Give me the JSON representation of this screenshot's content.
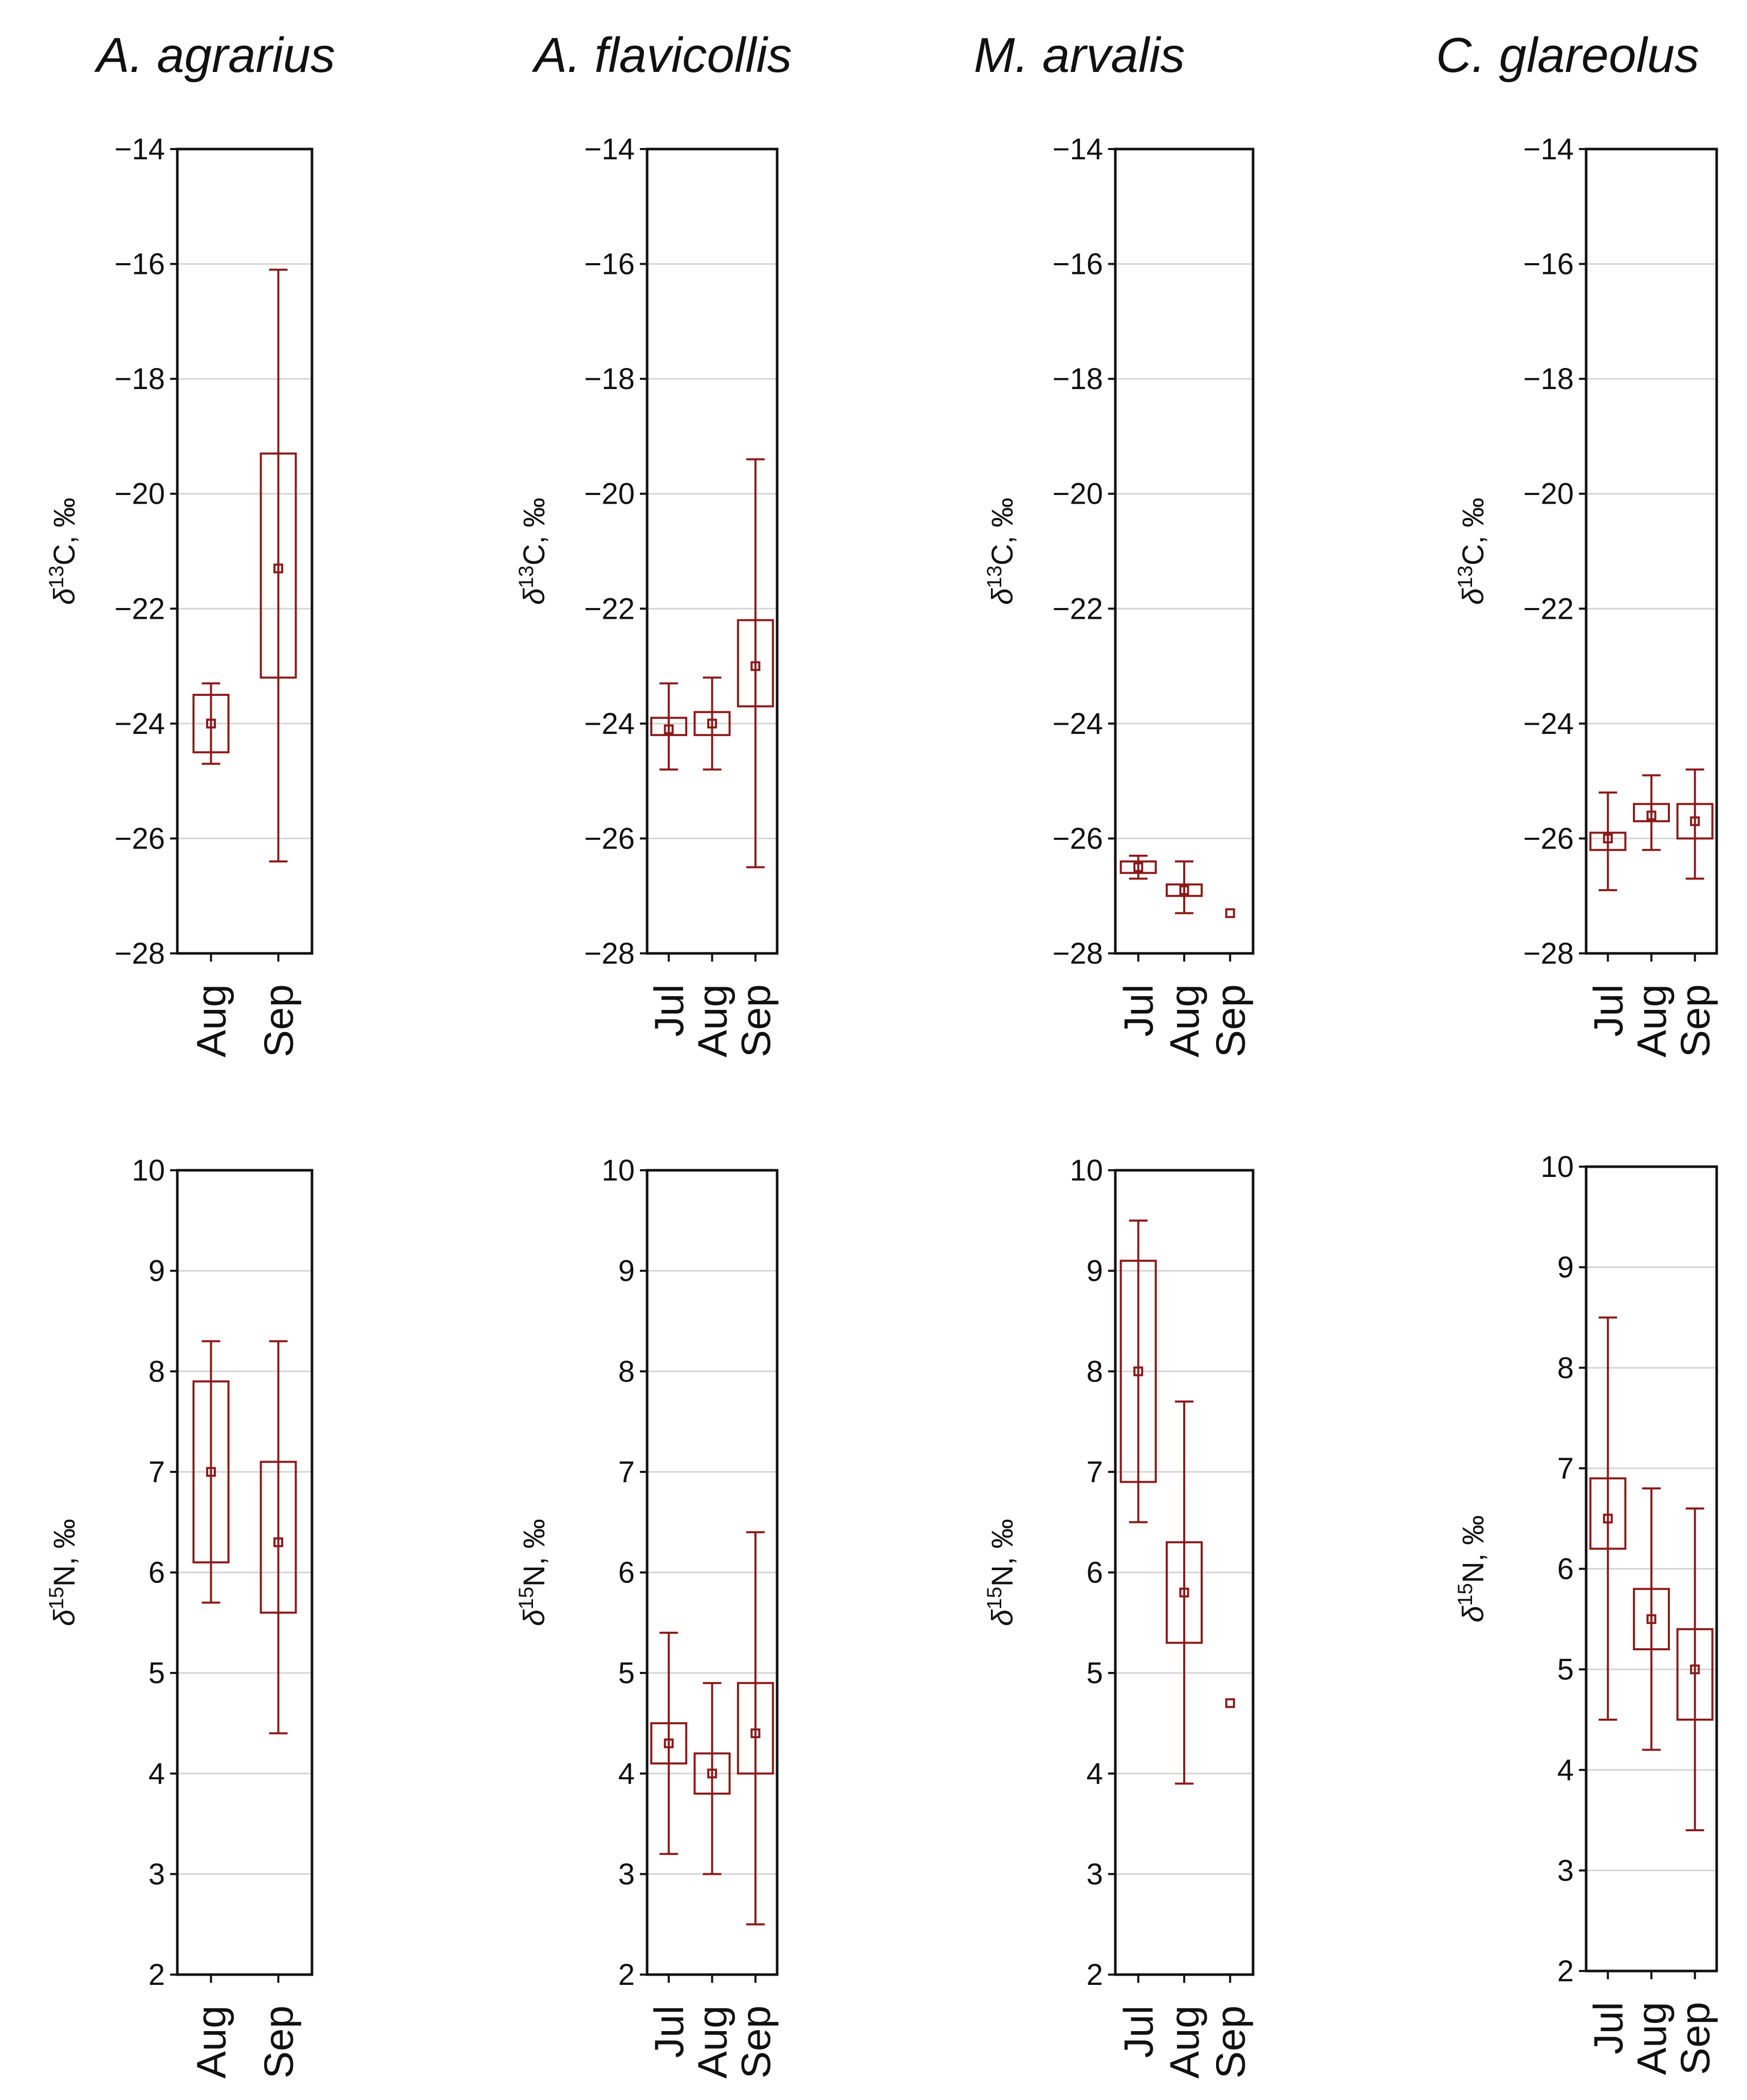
{
  "colors": {
    "accent": "#8B1A1A",
    "axis": "#111111",
    "grid": "#d4d4d4"
  },
  "chart_data": [
    {
      "type": "box",
      "species": "A. agrarius",
      "ylabel": "δ13C, ‰",
      "ylim": [
        -28,
        -14
      ],
      "yticks": [
        -14,
        -16,
        -18,
        -20,
        -22,
        -24,
        -26,
        -28
      ],
      "categories": [
        "Aug",
        "Sep"
      ],
      "boxes": [
        {
          "category": "Aug",
          "whisker_low": -24.7,
          "q1": -24.5,
          "median": -24.0,
          "q3": -23.5,
          "whisker_high": -23.3
        },
        {
          "category": "Sep",
          "whisker_low": -26.4,
          "q1": -23.2,
          "median": -21.3,
          "q3": -19.3,
          "whisker_high": -16.1
        }
      ]
    },
    {
      "type": "box",
      "species": "A. flavicollis",
      "ylabel": "δ13C, ‰",
      "ylim": [
        -28,
        -14
      ],
      "yticks": [
        -14,
        -16,
        -18,
        -20,
        -22,
        -24,
        -26,
        -28
      ],
      "categories": [
        "Jul",
        "Aug",
        "Sep"
      ],
      "boxes": [
        {
          "category": "Jul",
          "whisker_low": -24.8,
          "q1": -24.2,
          "median": -24.1,
          "q3": -23.9,
          "whisker_high": -23.3
        },
        {
          "category": "Aug",
          "whisker_low": -24.8,
          "q1": -24.2,
          "median": -24.0,
          "q3": -23.8,
          "whisker_high": -23.2
        },
        {
          "category": "Sep",
          "whisker_low": -26.5,
          "q1": -23.7,
          "median": -23.0,
          "q3": -22.2,
          "whisker_high": -19.4
        }
      ]
    },
    {
      "type": "box",
      "species": "M. arvalis",
      "ylabel": "δ13C, ‰",
      "ylim": [
        -28,
        -14
      ],
      "yticks": [
        -14,
        -16,
        -18,
        -20,
        -22,
        -24,
        -26,
        -28
      ],
      "categories": [
        "Jul",
        "Aug",
        "Sep"
      ],
      "boxes": [
        {
          "category": "Jul",
          "whisker_low": -26.7,
          "q1": -26.6,
          "median": -26.5,
          "q3": -26.4,
          "whisker_high": -26.3
        },
        {
          "category": "Aug",
          "whisker_low": -27.3,
          "q1": -27.0,
          "median": -26.9,
          "q3": -26.8,
          "whisker_high": -26.4
        },
        {
          "category": "Sep",
          "whisker_low": -27.3,
          "q1": -27.3,
          "median": -27.3,
          "q3": -27.3,
          "whisker_high": -27.3
        }
      ]
    },
    {
      "type": "box",
      "species": "C. glareolus",
      "ylabel": "δ13C, ‰",
      "ylim": [
        -28,
        -14
      ],
      "yticks": [
        -14,
        -16,
        -18,
        -20,
        -22,
        -24,
        -26,
        -28
      ],
      "categories": [
        "Jul",
        "Aug",
        "Sep"
      ],
      "boxes": [
        {
          "category": "Jul",
          "whisker_low": -26.9,
          "q1": -26.2,
          "median": -26.0,
          "q3": -25.9,
          "whisker_high": -25.2
        },
        {
          "category": "Aug",
          "whisker_low": -26.2,
          "q1": -25.7,
          "median": -25.6,
          "q3": -25.4,
          "whisker_high": -24.9
        },
        {
          "category": "Sep",
          "whisker_low": -26.7,
          "q1": -26.0,
          "median": -25.7,
          "q3": -25.4,
          "whisker_high": -24.8
        }
      ]
    },
    {
      "type": "box",
      "species": "A. agrarius",
      "ylabel": "δ15N, ‰",
      "ylim": [
        2,
        10
      ],
      "yticks": [
        10,
        9,
        8,
        7,
        6,
        5,
        4,
        3,
        2
      ],
      "categories": [
        "Aug",
        "Sep"
      ],
      "boxes": [
        {
          "category": "Aug",
          "whisker_low": 5.7,
          "q1": 6.1,
          "median": 7.0,
          "q3": 7.9,
          "whisker_high": 8.3
        },
        {
          "category": "Sep",
          "whisker_low": 4.4,
          "q1": 5.6,
          "median": 6.3,
          "q3": 7.1,
          "whisker_high": 8.3
        }
      ]
    },
    {
      "type": "box",
      "species": "A. flavicollis",
      "ylabel": "δ15N, ‰",
      "ylim": [
        2,
        10
      ],
      "yticks": [
        10,
        9,
        8,
        7,
        6,
        5,
        4,
        3,
        2
      ],
      "categories": [
        "Jul",
        "Aug",
        "Sep"
      ],
      "boxes": [
        {
          "category": "Jul",
          "whisker_low": 3.2,
          "q1": 4.1,
          "median": 4.3,
          "q3": 4.5,
          "whisker_high": 5.4
        },
        {
          "category": "Aug",
          "whisker_low": 3.0,
          "q1": 3.8,
          "median": 4.0,
          "q3": 4.2,
          "whisker_high": 4.9
        },
        {
          "category": "Sep",
          "whisker_low": 2.5,
          "q1": 4.0,
          "median": 4.4,
          "q3": 4.9,
          "whisker_high": 6.4
        }
      ]
    },
    {
      "type": "box",
      "species": "M. arvalis",
      "ylabel": "δ15N, ‰",
      "ylim": [
        2,
        10
      ],
      "yticks": [
        10,
        9,
        8,
        7,
        6,
        5,
        4,
        3,
        2
      ],
      "categories": [
        "Jul",
        "Aug",
        "Sep"
      ],
      "boxes": [
        {
          "category": "Jul",
          "whisker_low": 6.5,
          "q1": 6.9,
          "median": 8.0,
          "q3": 9.1,
          "whisker_high": 9.5
        },
        {
          "category": "Aug",
          "whisker_low": 3.9,
          "q1": 5.3,
          "median": 5.8,
          "q3": 6.3,
          "whisker_high": 7.7
        },
        {
          "category": "Sep",
          "whisker_low": 4.7,
          "q1": 4.7,
          "median": 4.7,
          "q3": 4.7,
          "whisker_high": 4.7
        }
      ]
    },
    {
      "type": "box",
      "species": "C. glareolus",
      "ylabel": "δ15N, ‰",
      "ylim": [
        2,
        10
      ],
      "yticks": [
        10,
        9,
        8,
        7,
        6,
        5,
        4,
        3,
        2
      ],
      "categories": [
        "Jul",
        "Aug",
        "Sep"
      ],
      "boxes": [
        {
          "category": "Jul",
          "whisker_low": 4.5,
          "q1": 6.2,
          "median": 6.5,
          "q3": 6.9,
          "whisker_high": 8.5
        },
        {
          "category": "Aug",
          "whisker_low": 4.2,
          "q1": 5.2,
          "median": 5.5,
          "q3": 5.8,
          "whisker_high": 6.8
        },
        {
          "category": "Sep",
          "whisker_low": 3.4,
          "q1": 4.5,
          "median": 5.0,
          "q3": 5.4,
          "whisker_high": 6.6
        }
      ]
    }
  ]
}
